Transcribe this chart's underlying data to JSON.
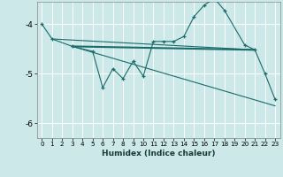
{
  "xlabel": "Humidex (Indice chaleur)",
  "bg_color": "#cce8e8",
  "grid_color": "#ffffff",
  "line_color": "#1a6b6b",
  "xlim": [
    -0.5,
    23.5
  ],
  "ylim": [
    -6.3,
    -3.55
  ],
  "yticks": [
    -6,
    -5,
    -4
  ],
  "xticks": [
    0,
    1,
    2,
    3,
    4,
    5,
    6,
    7,
    8,
    9,
    10,
    11,
    12,
    13,
    14,
    15,
    16,
    17,
    18,
    19,
    20,
    21,
    22,
    23
  ],
  "series1_x": [
    0,
    1,
    3,
    5,
    6,
    7,
    8,
    9,
    10,
    11,
    12,
    13,
    14,
    15,
    16,
    17,
    18,
    20,
    21,
    22,
    23
  ],
  "series1_y": [
    -4.0,
    -4.3,
    -4.45,
    -4.55,
    -5.28,
    -4.9,
    -5.1,
    -4.75,
    -5.05,
    -4.35,
    -4.35,
    -4.35,
    -4.25,
    -3.85,
    -3.62,
    -3.48,
    -3.72,
    -4.42,
    -4.52,
    -5.0,
    -5.52
  ],
  "series2_x": [
    3,
    21
  ],
  "series2_y": [
    -4.45,
    -4.52
  ],
  "series3_x": [
    3,
    23
  ],
  "series3_y": [
    -4.45,
    -5.65
  ],
  "series4_x": [
    1,
    21
  ],
  "series4_y": [
    -4.3,
    -4.52
  ]
}
